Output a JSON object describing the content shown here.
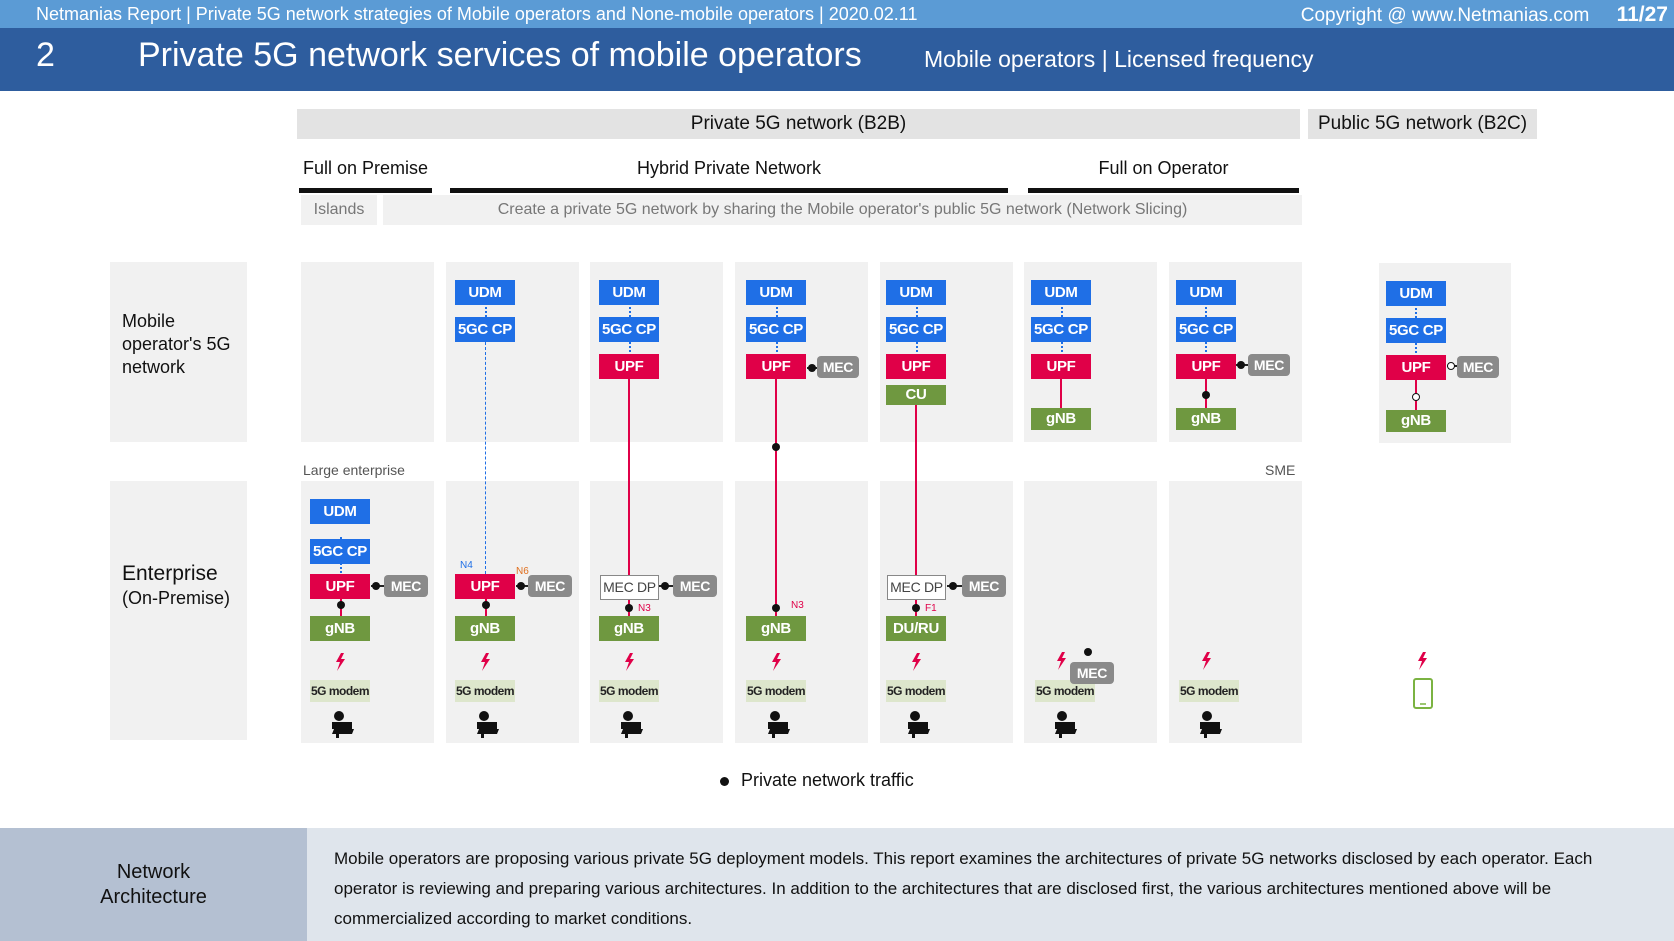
{
  "header": {
    "report": "Netmanias Report | Private 5G network strategies of Mobile operators and None-mobile operators  | 2020.02.11",
    "copyright": "Copyright @ www.Netmanias.com",
    "page": "11/27",
    "section_number": "2",
    "title": "Private 5G network services of mobile operators",
    "subtitle": "Mobile operators | Licensed frequency"
  },
  "groups": {
    "private": "Private 5G network (B2B)",
    "public": "Public 5G network (B2C)"
  },
  "segments": {
    "full_on_premise": "Full on Premise",
    "hybrid": "Hybrid Private Network",
    "full_on_operator": "Full on Operator"
  },
  "notes": {
    "islands": "Islands",
    "sharing": "Create a private 5G network by sharing the Mobile operator's public 5G network (Network Slicing)"
  },
  "rows": {
    "operator_l1": "Mobile",
    "operator_l2": "operator's 5G",
    "operator_l3": "network",
    "enterprise_l1": "Enterprise",
    "enterprise_l2": "(On-Premise)",
    "large": "Large enterprise",
    "sme": "SME"
  },
  "labels": {
    "udm": "UDM",
    "cp": "5GC CP",
    "upf": "UPF",
    "mec": "MEC",
    "gnb": "gNB",
    "cu": "CU",
    "durus": "DU/RU",
    "mecdp": "MEC DP",
    "modem": "5G modem",
    "n4": "N4",
    "n6": "N6",
    "n3": "N3",
    "f1": "F1"
  },
  "legend": "Private network traffic",
  "footer": {
    "label_l1": "Network",
    "label_l2": "Architecture",
    "text": "Mobile operators are proposing various private 5G deployment models. This report examines the architectures of private 5G networks disclosed by each operator. Each operator is reviewing and preparing various architectures. In addition to the architectures that are disclosed first, the various architectures mentioned above will be commercialized according to market conditions."
  },
  "colors": {
    "udm": "#1f6fe6",
    "upf": "#e00048",
    "gnb": "#6f9840",
    "mec": "#8a8a8a",
    "header": "#2e5d9e",
    "topbar": "#5b9bd5"
  }
}
